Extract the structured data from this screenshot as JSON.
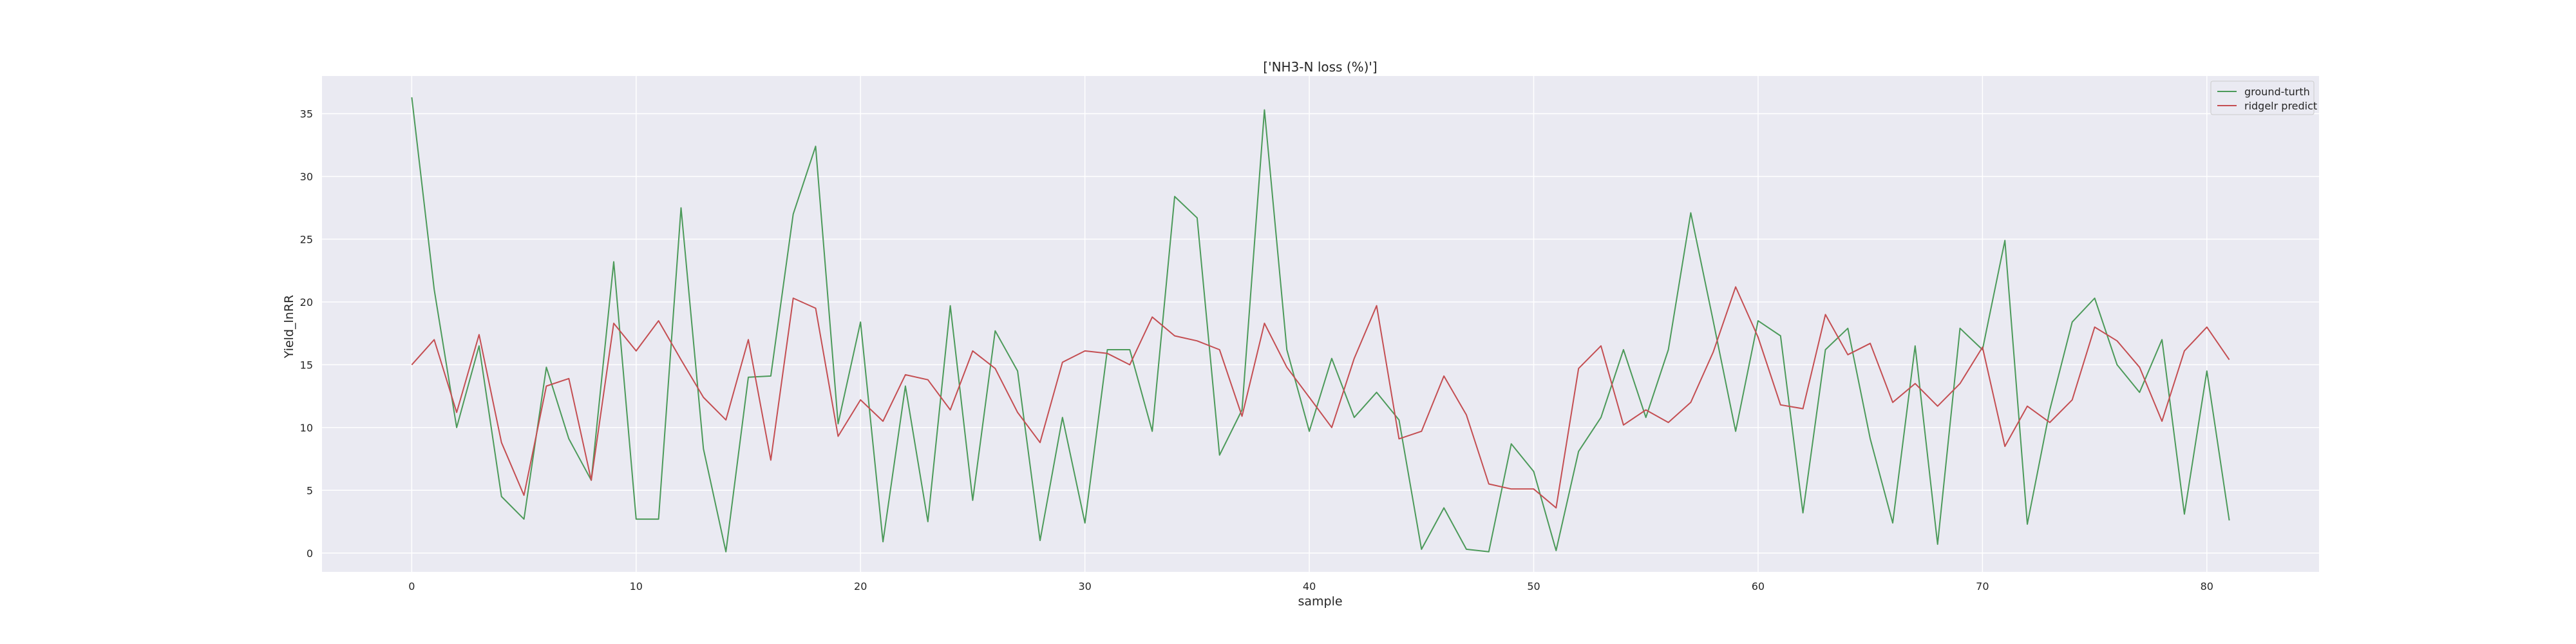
{
  "chart_data": {
    "type": "line",
    "title": "['NH3-N loss (%)']",
    "xlabel": "sample",
    "ylabel": "Yield_lnRR",
    "xlim": [
      -4,
      85
    ],
    "ylim": [
      -1.5,
      38
    ],
    "xticks": [
      0,
      10,
      20,
      30,
      40,
      50,
      60,
      70,
      80
    ],
    "yticks": [
      0,
      5,
      10,
      15,
      20,
      25,
      30,
      35
    ],
    "grid": true,
    "legend_position": "top-right",
    "x": [
      0,
      1,
      2,
      3,
      4,
      5,
      6,
      7,
      8,
      9,
      10,
      11,
      12,
      13,
      14,
      15,
      16,
      17,
      18,
      19,
      20,
      21,
      22,
      23,
      24,
      25,
      26,
      27,
      28,
      29,
      30,
      31,
      32,
      33,
      34,
      35,
      36,
      37,
      38,
      39,
      40,
      41,
      42,
      43,
      44,
      45,
      46,
      47,
      48,
      49,
      50,
      51,
      52,
      53,
      54,
      55,
      56,
      57,
      58,
      59,
      60,
      61,
      62,
      63,
      64,
      65,
      66,
      67,
      68,
      69,
      70,
      71,
      72,
      73,
      74,
      75,
      76,
      77,
      78,
      79,
      80,
      81
    ],
    "series": [
      {
        "name": "ground-turth",
        "color": "#4c9a5a",
        "values": [
          36.3,
          21,
          10,
          16.5,
          4.5,
          2.7,
          14.8,
          9.1,
          5.8,
          23.2,
          2.7,
          2.7,
          27.5,
          8.3,
          0.1,
          14,
          14.1,
          27,
          32.4,
          10.3,
          18.4,
          0.9,
          13.3,
          2.5,
          19.7,
          4.2,
          17.7,
          14.5,
          1,
          10.8,
          2.4,
          16.2,
          16.2,
          9.7,
          28.4,
          26.7,
          7.8,
          11.4,
          35.3,
          16.2,
          9.7,
          15.5,
          10.8,
          12.8,
          10.6,
          0.3,
          3.6,
          0.3,
          0.1,
          8.7,
          6.5,
          0.2,
          8.1,
          10.8,
          16.2,
          10.8,
          16.2,
          27.1,
          18.5,
          9.7,
          18.5,
          17.3,
          3.2,
          16.2,
          17.9,
          9.1,
          2.4,
          16.5,
          0.7,
          17.9,
          16.2,
          24.9,
          2.3,
          11.4,
          18.4,
          20.3,
          15,
          12.8,
          17,
          3.1,
          14.5,
          2.6
        ]
      },
      {
        "name": "ridgelr predict",
        "color": "#c44e52",
        "values": [
          15,
          17,
          11.2,
          17.4,
          8.8,
          4.6,
          13.3,
          13.9,
          5.8,
          18.3,
          16.1,
          18.5,
          15.4,
          12.4,
          10.6,
          17,
          7.4,
          20.3,
          19.5,
          9.3,
          12.2,
          10.5,
          14.2,
          13.8,
          11.4,
          16.1,
          14.7,
          11.2,
          8.8,
          15.2,
          16.1,
          15.9,
          15,
          18.8,
          17.3,
          16.9,
          16.2,
          10.9,
          18.3,
          14.8,
          12.4,
          10,
          15.5,
          19.7,
          9.1,
          9.7,
          14.1,
          11,
          5.5,
          5.1,
          5.1,
          3.6,
          14.7,
          16.5,
          10.2,
          11.4,
          10.4,
          12,
          16,
          21.2,
          17.2,
          11.8,
          11.5,
          19,
          15.8,
          16.7,
          12,
          13.5,
          11.7,
          13.5,
          16.4,
          8.5,
          11.7,
          10.4,
          12.2,
          18,
          16.9,
          14.8,
          10.5,
          16.1,
          18,
          15.4
        ]
      }
    ]
  }
}
